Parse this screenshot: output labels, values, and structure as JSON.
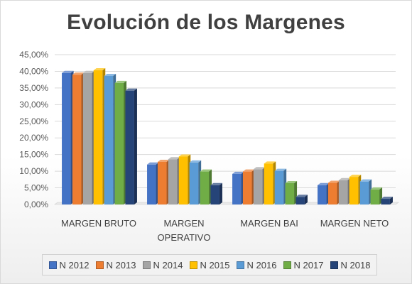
{
  "chart_data": {
    "type": "bar",
    "title": "Evolución de los Margenes",
    "categories": [
      "MARGEN BRUTO",
      "MARGEN OPERATIVO",
      "MARGEN BAI",
      "MARGEN NETO"
    ],
    "category_labels": [
      [
        "MARGEN BRUTO"
      ],
      [
        "MARGEN",
        "OPERATIVO"
      ],
      [
        "MARGEN BAI"
      ],
      [
        "MARGEN NETO"
      ]
    ],
    "series": [
      {
        "name": "N 2012",
        "color": "#4472C4",
        "values": [
          39.5,
          12.0,
          9.2,
          5.8
        ]
      },
      {
        "name": "N 2013",
        "color": "#ED7D31",
        "values": [
          39.0,
          12.8,
          9.9,
          6.5
        ]
      },
      {
        "name": "N 2014",
        "color": "#A5A5A5",
        "values": [
          39.5,
          13.6,
          10.6,
          7.3
        ]
      },
      {
        "name": "N 2015",
        "color": "#FFC000",
        "values": [
          40.3,
          14.4,
          12.3,
          8.3
        ]
      },
      {
        "name": "N 2016",
        "color": "#5B9BD5",
        "values": [
          38.6,
          12.6,
          10.1,
          6.9
        ]
      },
      {
        "name": "N 2017",
        "color": "#70AD47",
        "values": [
          36.5,
          9.9,
          6.4,
          4.5
        ]
      },
      {
        "name": "N 2018",
        "color": "#264478",
        "values": [
          34.2,
          5.8,
          2.3,
          1.7
        ]
      }
    ],
    "y_ticks": [
      "0,00%",
      "5,00%",
      "10,00%",
      "15,00%",
      "20,00%",
      "25,00%",
      "30,00%",
      "35,00%",
      "40,00%",
      "45,00%"
    ],
    "ylim": [
      0,
      45
    ],
    "grid": true,
    "legend_position": "bottom",
    "style": "3d-clustered-column"
  }
}
